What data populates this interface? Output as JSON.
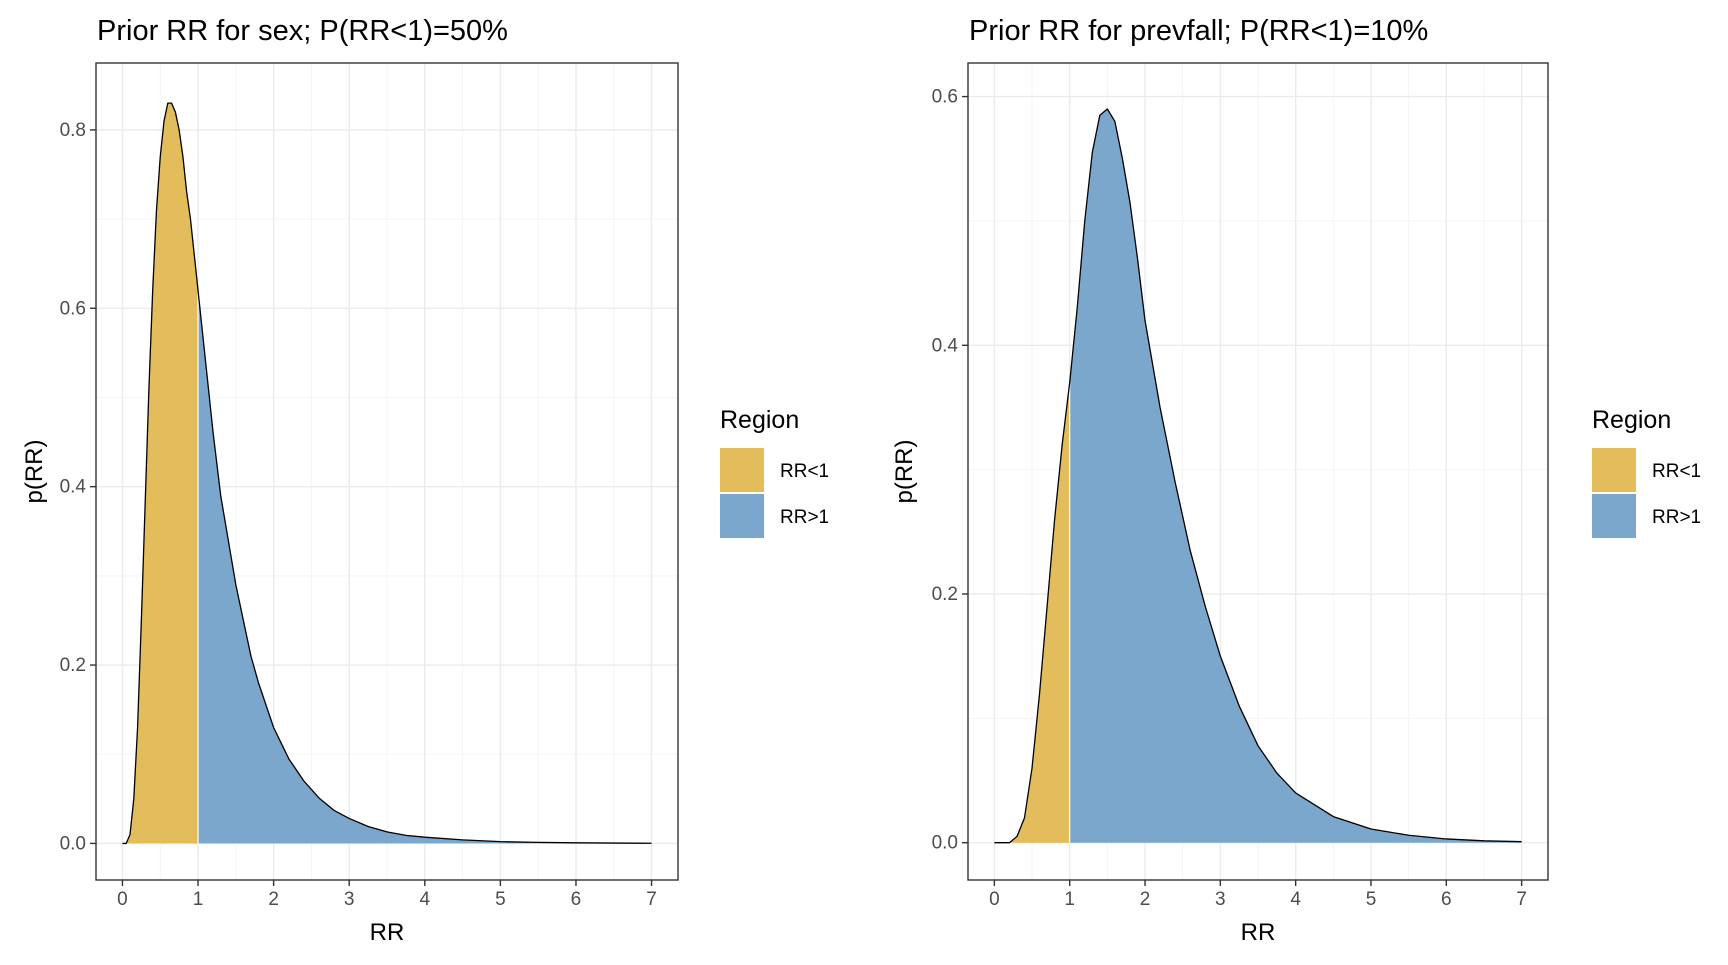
{
  "colors": {
    "below": "#E3BC5C",
    "above": "#7BA7CC",
    "curve": "#000000",
    "grid_major": "#EBEBEB",
    "grid_minor": "#F5F5F5",
    "panel_border": "#333333",
    "axis_text": "#4D4D4D"
  },
  "chart_data": [
    {
      "type": "area",
      "title": "Prior RR for sex; P(RR<1)=50%",
      "xlabel": "RR",
      "ylabel": "p(RR)",
      "xlim": [
        -0.35,
        7.35
      ],
      "ylim": [
        -0.041,
        0.875
      ],
      "x_ticks": [
        "0",
        "1",
        "2",
        "3",
        "4",
        "5",
        "6",
        "7"
      ],
      "y_ticks": [
        "0.0",
        "0.2",
        "0.4",
        "0.6",
        "0.8"
      ],
      "split_at": 1,
      "grid": true,
      "legend": {
        "title": "Region",
        "position": "right",
        "entries": [
          "RR<1",
          "RR>1"
        ]
      },
      "x": [
        0,
        0.05,
        0.1,
        0.15,
        0.2,
        0.25,
        0.3,
        0.35,
        0.4,
        0.45,
        0.5,
        0.55,
        0.6,
        0.65,
        0.7,
        0.75,
        0.8,
        0.85,
        0.9,
        0.95,
        1,
        1.1,
        1.2,
        1.3,
        1.4,
        1.5,
        1.6,
        1.7,
        1.8,
        1.9,
        2,
        2.2,
        2.4,
        2.6,
        2.8,
        3,
        3.25,
        3.5,
        3.75,
        4,
        4.5,
        5,
        5.5,
        6,
        6.5,
        7
      ],
      "y": [
        0,
        0.0,
        0.01,
        0.05,
        0.13,
        0.25,
        0.38,
        0.51,
        0.62,
        0.71,
        0.77,
        0.81,
        0.83,
        0.83,
        0.82,
        0.8,
        0.77,
        0.73,
        0.7,
        0.66,
        0.62,
        0.54,
        0.46,
        0.39,
        0.34,
        0.29,
        0.25,
        0.21,
        0.18,
        0.155,
        0.13,
        0.095,
        0.07,
        0.051,
        0.037,
        0.028,
        0.019,
        0.013,
        0.009,
        0.007,
        0.004,
        0.002,
        0.0012,
        0.0007,
        0.0004,
        0.0002
      ]
    },
    {
      "type": "area",
      "title": "Prior RR for prevfall; P(RR<1)=10%",
      "xlabel": "RR",
      "ylabel": "p(RR)",
      "xlim": [
        -0.35,
        7.35
      ],
      "ylim": [
        -0.03,
        0.627
      ],
      "x_ticks": [
        "0",
        "1",
        "2",
        "3",
        "4",
        "5",
        "6",
        "7"
      ],
      "y_ticks": [
        "0.0",
        "0.2",
        "0.4",
        "0.6"
      ],
      "split_at": 1,
      "grid": true,
      "legend": {
        "title": "Region",
        "position": "right",
        "entries": [
          "RR<1",
          "RR>1"
        ]
      },
      "x": [
        0,
        0.1,
        0.2,
        0.3,
        0.4,
        0.5,
        0.6,
        0.7,
        0.8,
        0.9,
        1,
        1.1,
        1.2,
        1.3,
        1.4,
        1.5,
        1.6,
        1.7,
        1.8,
        1.9,
        2,
        2.2,
        2.4,
        2.6,
        2.8,
        3,
        3.25,
        3.5,
        3.75,
        4,
        4.5,
        5,
        5.5,
        6,
        6.5,
        7
      ],
      "y": [
        0,
        0.0,
        0.0,
        0.005,
        0.02,
        0.06,
        0.12,
        0.19,
        0.26,
        0.32,
        0.37,
        0.43,
        0.5,
        0.555,
        0.585,
        0.59,
        0.58,
        0.55,
        0.515,
        0.47,
        0.42,
        0.35,
        0.29,
        0.235,
        0.19,
        0.15,
        0.11,
        0.078,
        0.056,
        0.04,
        0.021,
        0.011,
        0.006,
        0.003,
        0.0015,
        0.0008
      ]
    }
  ]
}
